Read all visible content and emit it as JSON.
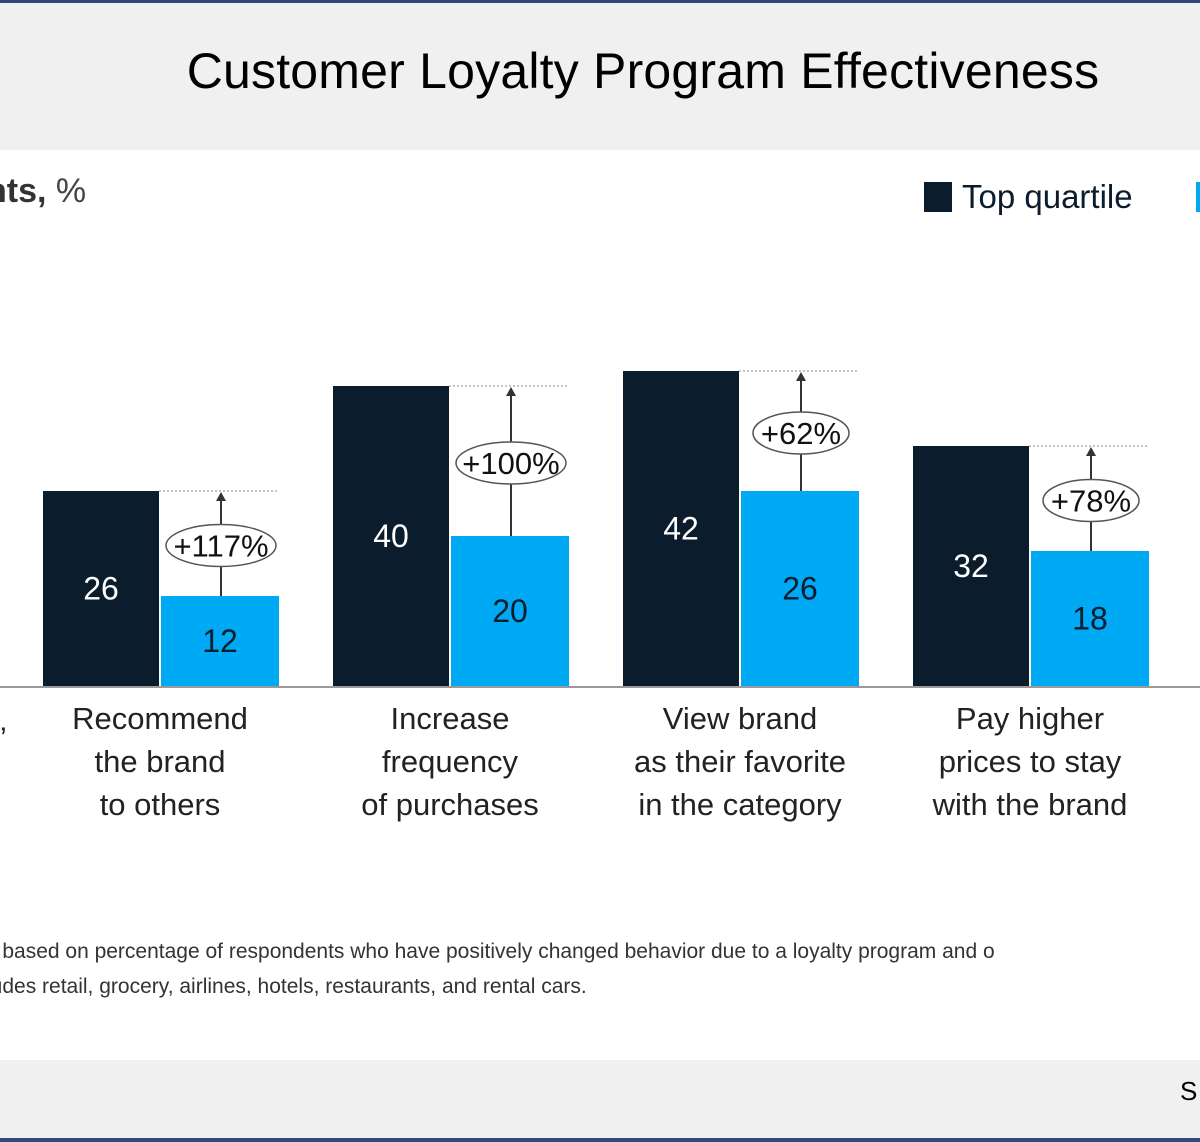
{
  "title": "Customer Loyalty Program Effectiveness",
  "unit_label": {
    "bold": "nts,",
    "rest": " %"
  },
  "legend": {
    "top_label": "Top quartile"
  },
  "chart_data": {
    "type": "bar",
    "categories": [
      [
        "Recommend",
        "the brand",
        "to others"
      ],
      [
        "Increase",
        "frequency",
        "of purchases"
      ],
      [
        "View brand",
        "as their favorite",
        "in the category"
      ],
      [
        "Pay higher",
        "prices to stay",
        "with the brand"
      ]
    ],
    "series": [
      {
        "name": "Top quartile",
        "color": "#0b1c2c",
        "values": [
          26,
          40,
          42,
          32
        ]
      },
      {
        "color": "#00a9f4",
        "values": [
          12,
          20,
          26,
          18
        ]
      }
    ],
    "annotations": [
      "+117%",
      "+100%",
      "+62%",
      "+78%"
    ],
    "title": "Customer Loyalty Program Effectiveness",
    "ylim": [
      0,
      42
    ]
  },
  "truncated_label": "’",
  "footnote": [
    "s based on percentage of respondents who have positively changed behavior due to a loyalty program and o",
    "ludes retail, grocery, airlines, hotels, restaurants, and rental cars."
  ],
  "source_fragment": "S"
}
